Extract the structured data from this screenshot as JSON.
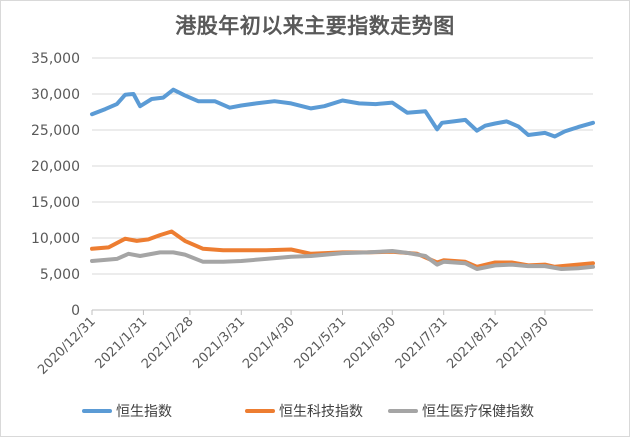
{
  "chart_data": {
    "type": "line",
    "title": "港股年初以来主要指数走势图",
    "xlabel": "",
    "ylabel": "",
    "ylim": [
      0,
      35000
    ],
    "y_ticks": [
      "0",
      "5,000",
      "10,000",
      "15,000",
      "20,000",
      "25,000",
      "30,000",
      "35,000"
    ],
    "x_ticks": [
      "2020/12/31",
      "2021/1/31",
      "2021/2/28",
      "2021/3/31",
      "2021/4/30",
      "2021/5/31",
      "2021/6/30",
      "2021/7/31",
      "2021/8/31",
      "2021/9/30"
    ],
    "x_range": [
      "2020/12/31",
      "2021/10/29"
    ],
    "grid": "horizontal",
    "legend_position": "bottom",
    "series": [
      {
        "name": "恒生指数",
        "color": "#5B9BD5",
        "points": [
          [
            "2020/12/31",
            27200
          ],
          [
            "2021/1/8",
            27900
          ],
          [
            "2021/1/15",
            28600
          ],
          [
            "2021/1/20",
            29900
          ],
          [
            "2021/1/25",
            30000
          ],
          [
            "2021/1/29",
            28300
          ],
          [
            "2021/2/5",
            29300
          ],
          [
            "2021/2/12",
            29500
          ],
          [
            "2021/2/18",
            30600
          ],
          [
            "2021/2/25",
            29800
          ],
          [
            "2021/3/5",
            29000
          ],
          [
            "2021/3/15",
            29000
          ],
          [
            "2021/3/24",
            28100
          ],
          [
            "2021/3/31",
            28400
          ],
          [
            "2021/4/9",
            28700
          ],
          [
            "2021/4/20",
            29000
          ],
          [
            "2021/4/30",
            28700
          ],
          [
            "2021/5/12",
            28000
          ],
          [
            "2021/5/20",
            28300
          ],
          [
            "2021/5/31",
            29100
          ],
          [
            "2021/6/10",
            28700
          ],
          [
            "2021/6/20",
            28600
          ],
          [
            "2021/6/30",
            28800
          ],
          [
            "2021/7/9",
            27400
          ],
          [
            "2021/7/20",
            27600
          ],
          [
            "2021/7/27",
            25100
          ],
          [
            "2021/7/30",
            26000
          ],
          [
            "2021/8/6",
            26200
          ],
          [
            "2021/8/13",
            26400
          ],
          [
            "2021/8/20",
            24900
          ],
          [
            "2021/8/25",
            25600
          ],
          [
            "2021/8/31",
            25900
          ],
          [
            "2021/9/7",
            26200
          ],
          [
            "2021/9/14",
            25500
          ],
          [
            "2021/9/20",
            24300
          ],
          [
            "2021/9/30",
            24600
          ],
          [
            "2021/10/6",
            24100
          ],
          [
            "2021/10/12",
            24800
          ],
          [
            "2021/10/20",
            25400
          ],
          [
            "2021/10/29",
            26000
          ]
        ]
      },
      {
        "name": "恒生科技指数",
        "color": "#ED7D31",
        "points": [
          [
            "2020/12/31",
            8500
          ],
          [
            "2021/1/10",
            8700
          ],
          [
            "2021/1/20",
            9900
          ],
          [
            "2021/1/27",
            9600
          ],
          [
            "2021/2/3",
            9800
          ],
          [
            "2021/2/10",
            10400
          ],
          [
            "2021/2/17",
            10900
          ],
          [
            "2021/2/25",
            9600
          ],
          [
            "2021/3/8",
            8500
          ],
          [
            "2021/3/20",
            8300
          ],
          [
            "2021/3/31",
            8300
          ],
          [
            "2021/4/15",
            8300
          ],
          [
            "2021/4/30",
            8400
          ],
          [
            "2021/5/12",
            7800
          ],
          [
            "2021/5/31",
            8000
          ],
          [
            "2021/6/15",
            8000
          ],
          [
            "2021/6/30",
            8100
          ],
          [
            "2021/7/15",
            7800
          ],
          [
            "2021/7/27",
            6600
          ],
          [
            "2021/7/31",
            6900
          ],
          [
            "2021/8/13",
            6700
          ],
          [
            "2021/8/20",
            6000
          ],
          [
            "2021/8/31",
            6600
          ],
          [
            "2021/9/10",
            6600
          ],
          [
            "2021/9/20",
            6200
          ],
          [
            "2021/9/30",
            6300
          ],
          [
            "2021/10/6",
            6000
          ],
          [
            "2021/10/15",
            6200
          ],
          [
            "2021/10/29",
            6500
          ]
        ]
      },
      {
        "name": "恒生医疗保健指数",
        "color": "#A5A5A5",
        "points": [
          [
            "2020/12/31",
            6800
          ],
          [
            "2021/1/15",
            7100
          ],
          [
            "2021/1/22",
            7800
          ],
          [
            "2021/1/29",
            7500
          ],
          [
            "2021/2/10",
            8000
          ],
          [
            "2021/2/18",
            8000
          ],
          [
            "2021/2/25",
            7700
          ],
          [
            "2021/3/8",
            6700
          ],
          [
            "2021/3/20",
            6700
          ],
          [
            "2021/3/31",
            6800
          ],
          [
            "2021/4/15",
            7100
          ],
          [
            "2021/4/30",
            7400
          ],
          [
            "2021/5/12",
            7500
          ],
          [
            "2021/5/31",
            7900
          ],
          [
            "2021/6/15",
            8000
          ],
          [
            "2021/6/30",
            8200
          ],
          [
            "2021/7/10",
            7900
          ],
          [
            "2021/7/20",
            7500
          ],
          [
            "2021/7/27",
            6300
          ],
          [
            "2021/7/31",
            6700
          ],
          [
            "2021/8/13",
            6500
          ],
          [
            "2021/8/20",
            5700
          ],
          [
            "2021/8/31",
            6200
          ],
          [
            "2021/9/10",
            6300
          ],
          [
            "2021/9/20",
            6100
          ],
          [
            "2021/9/30",
            6100
          ],
          [
            "2021/10/10",
            5700
          ],
          [
            "2021/10/20",
            5800
          ],
          [
            "2021/10/29",
            6000
          ]
        ]
      }
    ]
  }
}
